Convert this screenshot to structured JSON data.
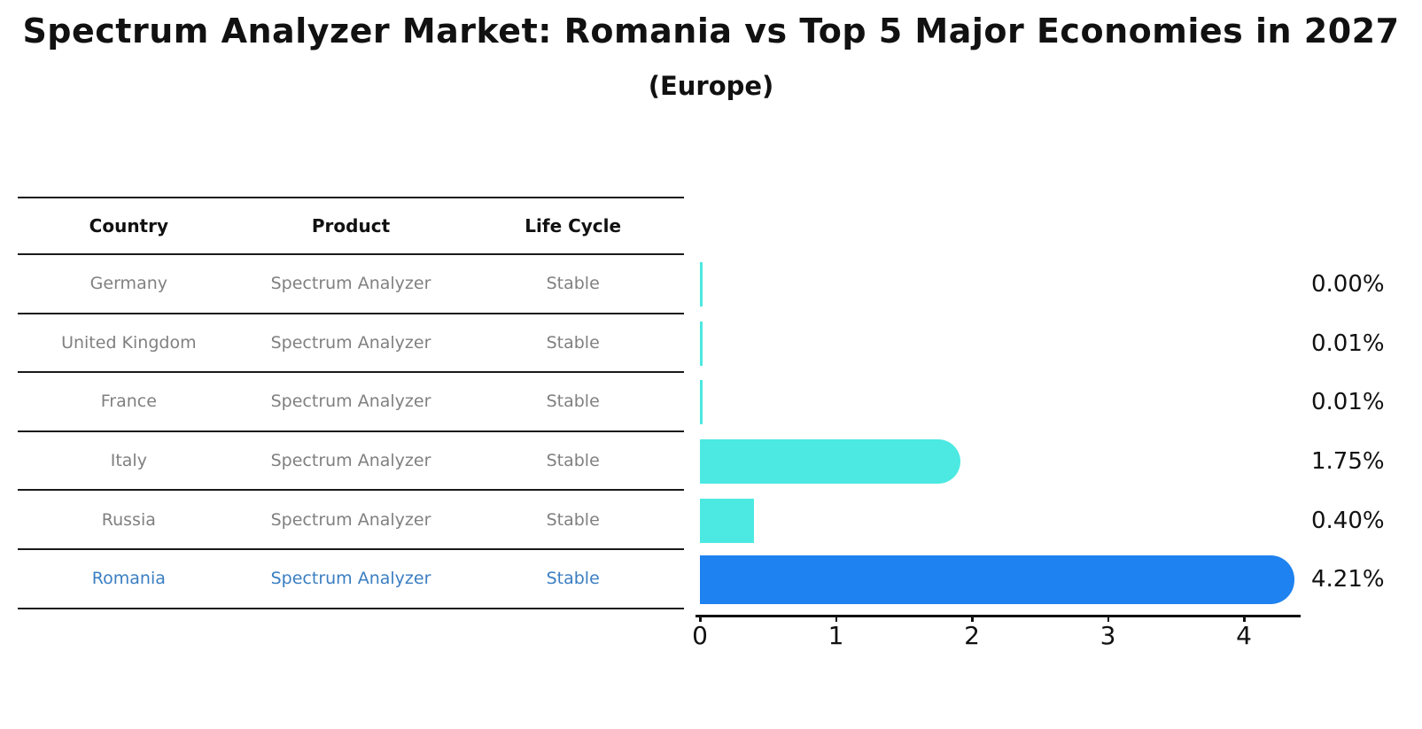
{
  "title": "Spectrum Analyzer Market: Romania vs Top 5 Major Economies in 2027",
  "subtitle": "(Europe)",
  "table": {
    "headers": [
      "Country",
      "Product",
      "Life Cycle"
    ],
    "rows": [
      {
        "country": "Germany",
        "product": "Spectrum Analyzer",
        "life_cycle": "Stable",
        "highlight": false
      },
      {
        "country": "United Kingdom",
        "product": "Spectrum Analyzer",
        "life_cycle": "Stable",
        "highlight": false
      },
      {
        "country": "France",
        "product": "Spectrum Analyzer",
        "life_cycle": "Stable",
        "highlight": false
      },
      {
        "country": "Italy",
        "product": "Spectrum Analyzer",
        "life_cycle": "Stable",
        "highlight": false
      },
      {
        "country": "Russia",
        "product": "Spectrum Analyzer",
        "life_cycle": "Stable",
        "highlight": false
      },
      {
        "country": "Romania",
        "product": "Spectrum Analyzer",
        "life_cycle": "Stable",
        "highlight": true
      }
    ]
  },
  "chart_data": {
    "type": "bar",
    "orientation": "horizontal",
    "title": "Spectrum Analyzer Market: Romania vs Top 5 Major Economies in 2027",
    "subtitle": "(Europe)",
    "categories": [
      "Germany",
      "United Kingdom",
      "France",
      "Italy",
      "Russia",
      "Romania"
    ],
    "values": [
      0.0,
      0.01,
      0.01,
      1.75,
      0.4,
      4.21
    ],
    "value_labels": [
      "0.00%",
      "0.01%",
      "0.01%",
      "1.75%",
      "0.40%",
      "4.21%"
    ],
    "xlabel": "",
    "ylabel": "",
    "xlim": [
      0,
      4.45
    ],
    "xticks": [
      "0",
      "1",
      "2",
      "3",
      "4"
    ],
    "grid": false,
    "legend": "none",
    "highlight_category": "Romania",
    "colors": {
      "bar_default": "#4be9e2",
      "bar_highlight": "#1e82f0",
      "highlight_text": "#3a7ec2",
      "row_text": "#808080",
      "axis": "#111111"
    }
  }
}
